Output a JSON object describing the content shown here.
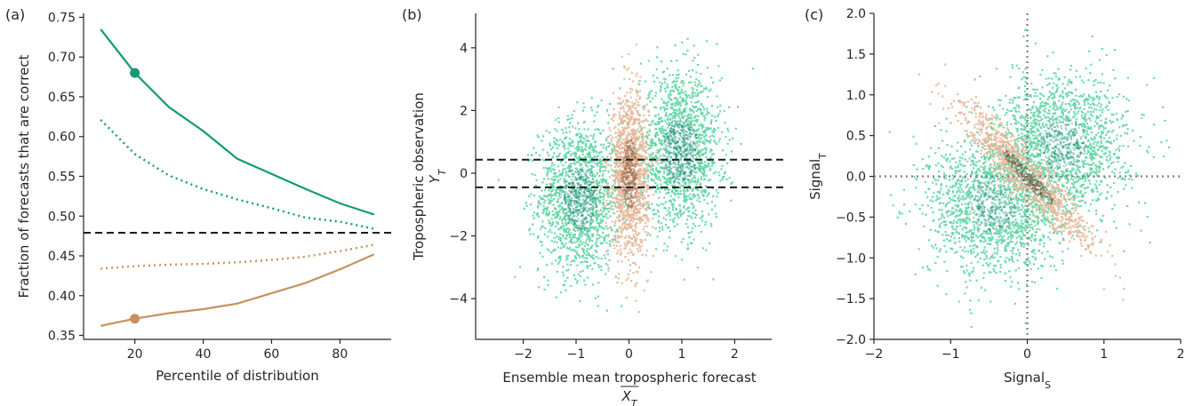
{
  "colors": {
    "green": "#139a72",
    "orange": "#c8915e",
    "green_light": "#5fd6a6",
    "orange_light": "#e8b89a",
    "dark": "#1c1c1c",
    "grey": "#808080"
  },
  "chart_data": [
    {
      "panel_label": "(a)",
      "type": "line",
      "xlabel": "Percentile of distribution",
      "ylabel": "Fraction of forecasts that are correct",
      "xlim": [
        5,
        95
      ],
      "ylim": [
        0.345,
        0.755
      ],
      "xticks": [
        20,
        40,
        60,
        80
      ],
      "yticks": [
        0.35,
        0.4,
        0.45,
        0.5,
        0.55,
        0.6,
        0.65,
        0.7,
        0.75
      ],
      "x": [
        10,
        20,
        30,
        40,
        50,
        60,
        70,
        80,
        90
      ],
      "series": [
        {
          "style": "solid",
          "color": "green",
          "values": [
            0.735,
            0.68,
            0.637,
            0.607,
            0.572,
            0.553,
            0.534,
            0.516,
            0.502
          ]
        },
        {
          "style": "dotted",
          "color": "green",
          "values": [
            0.621,
            0.578,
            0.551,
            0.534,
            0.521,
            0.51,
            0.498,
            0.493,
            0.484
          ]
        },
        {
          "style": "dotted",
          "color": "orange",
          "values": [
            0.434,
            0.437,
            0.439,
            0.44,
            0.442,
            0.445,
            0.449,
            0.456,
            0.464
          ]
        },
        {
          "style": "solid",
          "color": "orange",
          "values": [
            0.362,
            0.371,
            0.378,
            0.383,
            0.39,
            0.403,
            0.416,
            0.433,
            0.452
          ]
        }
      ],
      "markers": [
        {
          "x": 20,
          "y": 0.68,
          "color": "green"
        },
        {
          "x": 20,
          "y": 0.371,
          "color": "orange"
        }
      ],
      "hlines": [
        {
          "y": 0.479,
          "style": "dashed"
        }
      ],
      "grid": false
    },
    {
      "panel_label": "(b)",
      "type": "heatmap",
      "xlabel": "Ensemble mean tropospheric forecast",
      "xlabel2": "X",
      "xlabel2_sub": "T",
      "ylabel": "Tropospheric observation",
      "ylabel2": "Y",
      "ylabel2_sub": "T",
      "xlim": [
        -2.9,
        2.7
      ],
      "ylim": [
        -5.3,
        5.1
      ],
      "xticks": [
        -2,
        -1,
        0,
        1,
        2
      ],
      "xtick_labels": [
        "−2",
        "−1",
        "0",
        "1",
        "2"
      ],
      "yticks": [
        -4,
        -2,
        0,
        2,
        4
      ],
      "ytick_labels": [
        "−4",
        "−2",
        "0",
        "2",
        "4"
      ],
      "hlines": [
        {
          "y": 0.43,
          "style": "dashed"
        },
        {
          "y": -0.45,
          "style": "dashed"
        }
      ],
      "clusters": [
        {
          "color": "green",
          "cx": -0.95,
          "cy": -0.75,
          "sx": 0.38,
          "sy": 1.2
        },
        {
          "color": "green",
          "cx": 0.95,
          "cy": 0.75,
          "sx": 0.38,
          "sy": 1.2
        },
        {
          "color": "orange",
          "cx": 0.0,
          "cy": 0.0,
          "sx": 0.17,
          "sy": 1.25
        }
      ],
      "grid": false
    },
    {
      "panel_label": "(c)",
      "type": "heatmap",
      "xlabel": "Signal",
      "xlabel_sub": "S",
      "ylabel": "Signal",
      "ylabel_sub": "T",
      "xlim": [
        -2,
        2
      ],
      "ylim": [
        -2,
        2
      ],
      "xticks": [
        -2,
        -1,
        0,
        1,
        2
      ],
      "xtick_labels": [
        "−2",
        "−1",
        "0",
        "1",
        "2"
      ],
      "yticks": [
        -2.0,
        -1.5,
        -1.0,
        -0.5,
        0.0,
        0.5,
        1.0,
        1.5,
        2.0
      ],
      "ytick_labels": [
        "−2.0",
        "−1.5",
        "−1.0",
        "−0.5",
        "0.0",
        "0.5",
        "1.0",
        "1.5",
        "2.0"
      ],
      "refs": [
        {
          "axis": "x",
          "value": 0,
          "style": "dotted"
        },
        {
          "axis": "y",
          "value": 0,
          "style": "dotted"
        }
      ],
      "clusters": [
        {
          "color": "green",
          "cx": -0.45,
          "cy": -0.35,
          "sx": 0.42,
          "sy": 0.42
        },
        {
          "color": "green",
          "cx": 0.45,
          "cy": 0.4,
          "sx": 0.42,
          "sy": 0.42
        },
        {
          "color": "orange",
          "cx": 0.0,
          "cy": 0.0,
          "along": 0.6,
          "across": 0.11
        }
      ],
      "grid": false
    }
  ]
}
